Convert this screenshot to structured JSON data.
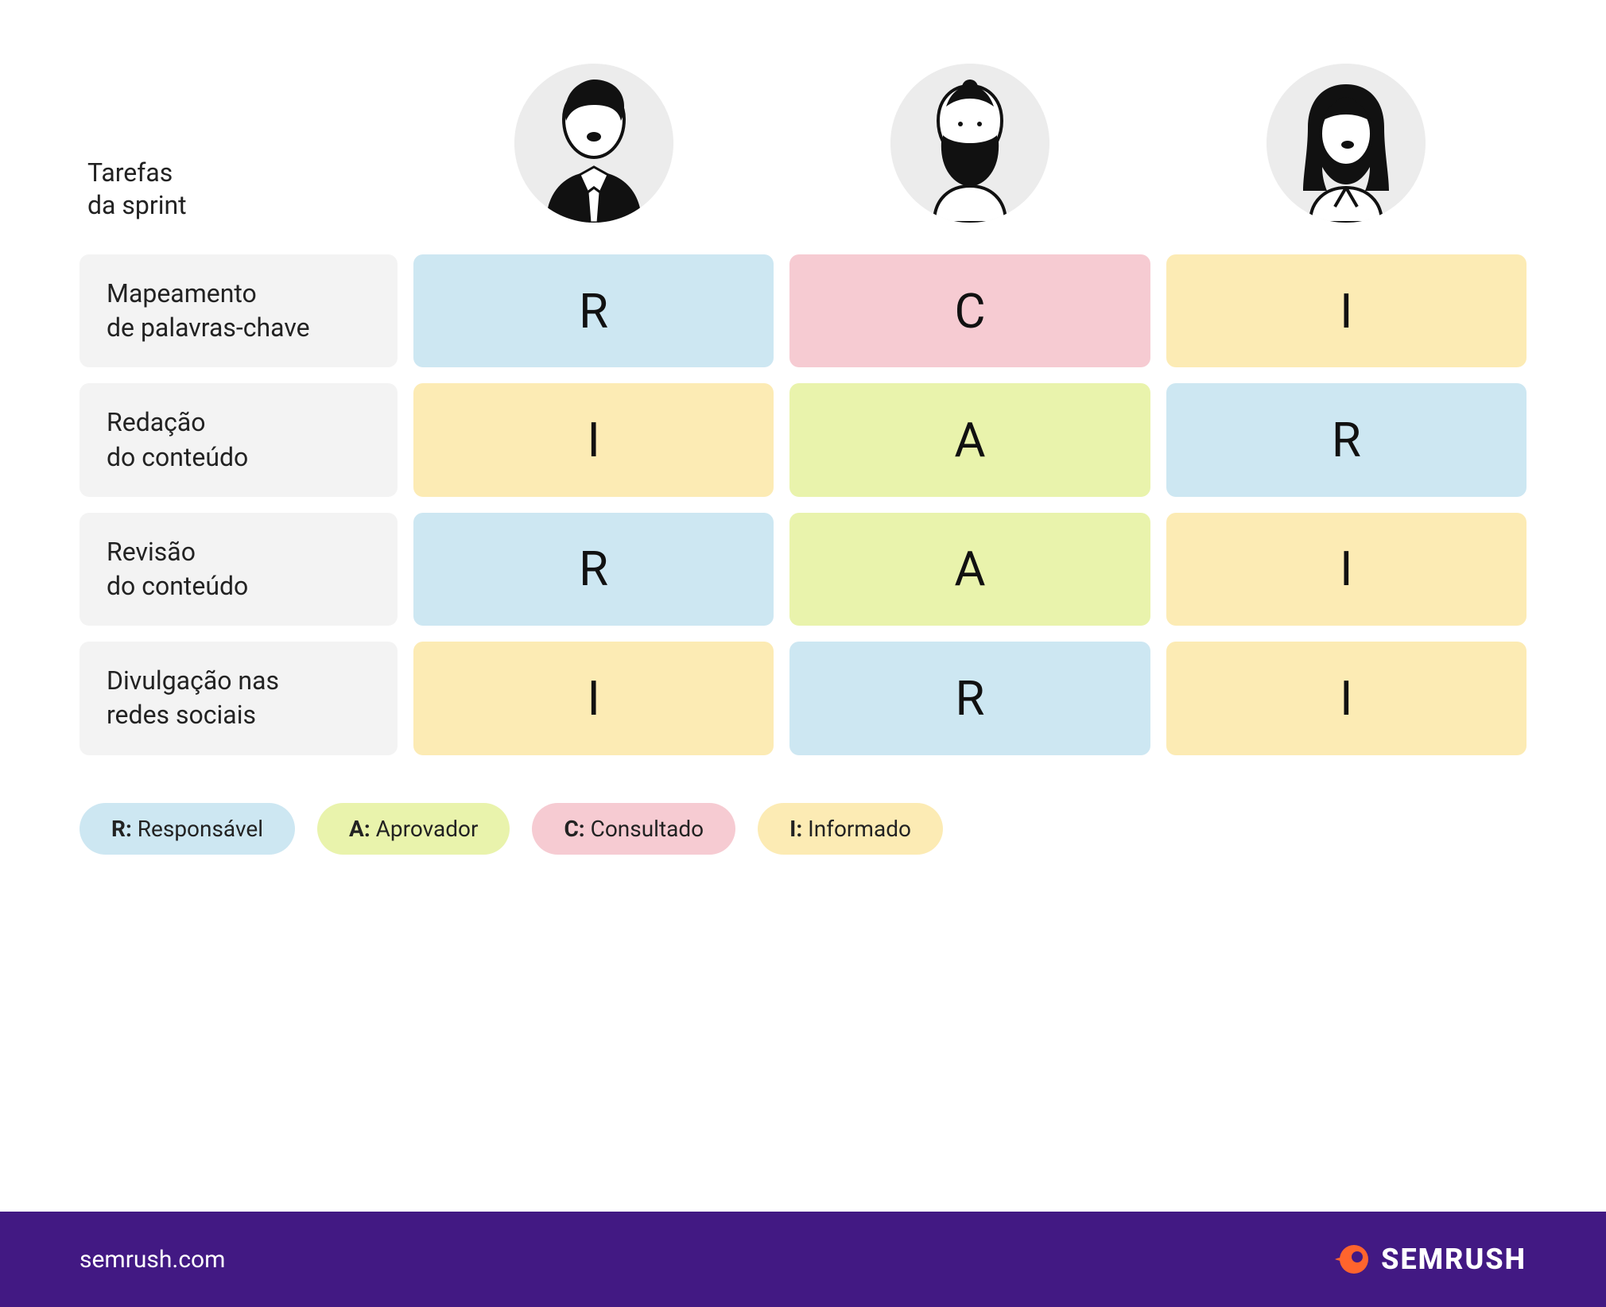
{
  "type": "raci-matrix",
  "background_color": "#ffffff",
  "colors": {
    "R": "#cde7f2",
    "A": "#e9f3ac",
    "C": "#f6cbd2",
    "I": "#fcebb4",
    "task_bg": "#f3f3f3",
    "avatar_bg": "#ececec",
    "footer_bg": "#421983",
    "footer_text": "#ffffff",
    "brand_orange": "#ff642d",
    "text": "#222222"
  },
  "typography": {
    "base_fontsize": 32,
    "raci_fontsize": 60,
    "legend_fontsize": 28,
    "footer_url_fontsize": 30,
    "logo_fontsize": 36
  },
  "header_label": "Tarefas\nda sprint",
  "personas": [
    {
      "id": "persona-1",
      "desc": "man-suit"
    },
    {
      "id": "persona-2",
      "desc": "man-beard"
    },
    {
      "id": "persona-3",
      "desc": "woman-long-hair"
    }
  ],
  "rows": [
    {
      "task": "Mapeamento\nde palavras-chave",
      "cells": [
        "R",
        "C",
        "I"
      ]
    },
    {
      "task": "Redação\ndo conteúdo",
      "cells": [
        "I",
        "A",
        "R"
      ]
    },
    {
      "task": "Revisão\ndo conteúdo",
      "cells": [
        "R",
        "A",
        "I"
      ]
    },
    {
      "task": "Divulgação nas\nredes sociais",
      "cells": [
        "I",
        "R",
        "I"
      ]
    }
  ],
  "legend": [
    {
      "code": "R",
      "label": "Responsável"
    },
    {
      "code": "A",
      "label": "Aprovador"
    },
    {
      "code": "C",
      "label": "Consultado"
    },
    {
      "code": "I",
      "label": "Informado"
    }
  ],
  "footer": {
    "url": "semrush.com",
    "brand": "SEMRUSH"
  }
}
